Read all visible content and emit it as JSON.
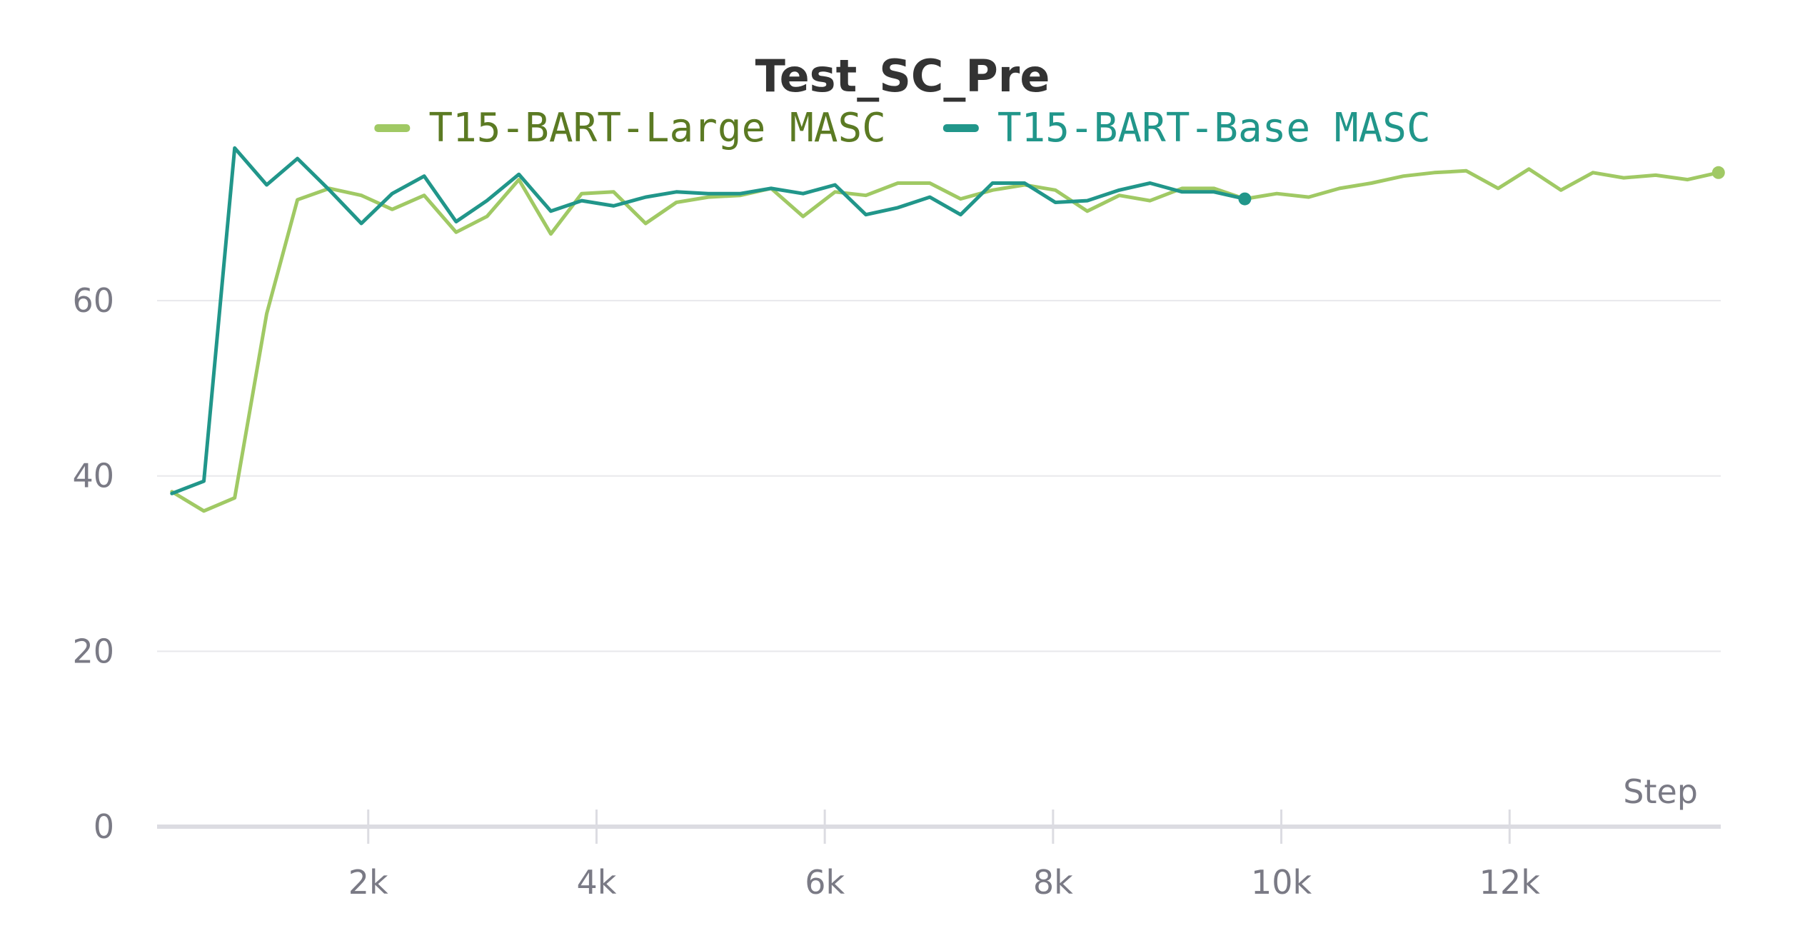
{
  "chart_data": {
    "type": "line",
    "title": "Test_SC_Pre",
    "xlabel": "Step",
    "ylabel": "",
    "xlim": [
      150,
      13850
    ],
    "ylim": [
      0,
      78
    ],
    "x_ticks": [
      {
        "value": 2000,
        "label": "2k"
      },
      {
        "value": 4000,
        "label": "4k"
      },
      {
        "value": 6000,
        "label": "6k"
      },
      {
        "value": 8000,
        "label": "8k"
      },
      {
        "value": 10000,
        "label": "10k"
      },
      {
        "value": 12000,
        "label": "12k"
      }
    ],
    "y_ticks": [
      {
        "value": 0,
        "label": "0"
      },
      {
        "value": 20,
        "label": "20"
      },
      {
        "value": 40,
        "label": "40"
      },
      {
        "value": 60,
        "label": "60"
      }
    ],
    "grid": true,
    "legend_position": "top-center",
    "series": [
      {
        "name": "T15-BART-Large MASC",
        "color": "#a0c964",
        "label_color": "#5b7a23",
        "points": [
          [
            280,
            38.2
          ],
          [
            560,
            36.0
          ],
          [
            830,
            37.5
          ],
          [
            1110,
            58.5
          ],
          [
            1380,
            71.5
          ],
          [
            1660,
            72.8
          ],
          [
            1940,
            72.0
          ],
          [
            2210,
            70.4
          ],
          [
            2490,
            72.0
          ],
          [
            2770,
            67.8
          ],
          [
            3040,
            69.6
          ],
          [
            3320,
            73.8
          ],
          [
            3600,
            67.6
          ],
          [
            3870,
            72.2
          ],
          [
            4150,
            72.4
          ],
          [
            4430,
            68.8
          ],
          [
            4700,
            71.2
          ],
          [
            4980,
            71.8
          ],
          [
            5260,
            72.0
          ],
          [
            5530,
            72.8
          ],
          [
            5810,
            69.6
          ],
          [
            6090,
            72.4
          ],
          [
            6360,
            72.0
          ],
          [
            6640,
            73.4
          ],
          [
            6920,
            73.4
          ],
          [
            7190,
            71.6
          ],
          [
            7470,
            72.6
          ],
          [
            7750,
            73.2
          ],
          [
            8020,
            72.6
          ],
          [
            8300,
            70.2
          ],
          [
            8580,
            72.0
          ],
          [
            8850,
            71.4
          ],
          [
            9130,
            72.8
          ],
          [
            9410,
            72.8
          ],
          [
            9680,
            71.6
          ],
          [
            9960,
            72.2
          ],
          [
            10240,
            71.8
          ],
          [
            10510,
            72.8
          ],
          [
            10790,
            73.4
          ],
          [
            11070,
            74.2
          ],
          [
            11340,
            74.6
          ],
          [
            11620,
            74.8
          ],
          [
            11900,
            72.8
          ],
          [
            12170,
            75.0
          ],
          [
            12450,
            72.6
          ],
          [
            12730,
            74.6
          ],
          [
            13000,
            74.0
          ],
          [
            13280,
            74.3
          ],
          [
            13560,
            73.8
          ],
          [
            13830,
            74.6
          ]
        ]
      },
      {
        "name": "T15-BART-Base MASC",
        "color": "#21968a",
        "label_color": "#21968a",
        "points": [
          [
            280,
            38.0
          ],
          [
            560,
            39.4
          ],
          [
            830,
            77.4
          ],
          [
            1110,
            73.2
          ],
          [
            1380,
            76.2
          ],
          [
            1660,
            72.6
          ],
          [
            1940,
            68.8
          ],
          [
            2210,
            72.2
          ],
          [
            2490,
            74.2
          ],
          [
            2770,
            69.0
          ],
          [
            3040,
            71.4
          ],
          [
            3320,
            74.4
          ],
          [
            3600,
            70.2
          ],
          [
            3870,
            71.4
          ],
          [
            4150,
            70.8
          ],
          [
            4430,
            71.8
          ],
          [
            4700,
            72.4
          ],
          [
            4980,
            72.2
          ],
          [
            5260,
            72.2
          ],
          [
            5530,
            72.8
          ],
          [
            5810,
            72.2
          ],
          [
            6090,
            73.2
          ],
          [
            6360,
            69.8
          ],
          [
            6640,
            70.6
          ],
          [
            6920,
            71.8
          ],
          [
            7190,
            69.8
          ],
          [
            7470,
            73.4
          ],
          [
            7750,
            73.4
          ],
          [
            8020,
            71.2
          ],
          [
            8300,
            71.4
          ],
          [
            8580,
            72.6
          ],
          [
            8850,
            73.4
          ],
          [
            9130,
            72.4
          ],
          [
            9410,
            72.4
          ],
          [
            9680,
            71.6
          ]
        ]
      }
    ]
  }
}
